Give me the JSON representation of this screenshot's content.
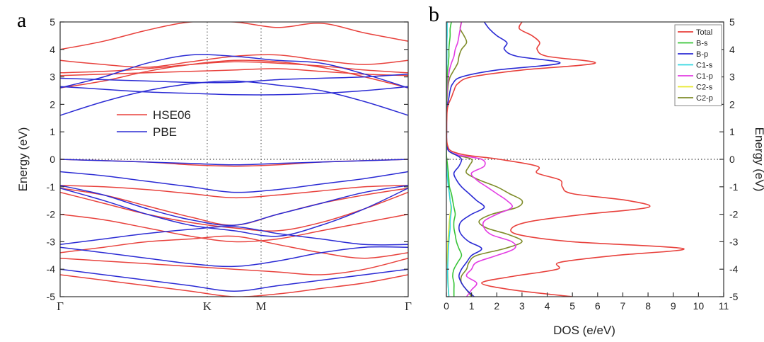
{
  "chart_data": [
    {
      "panel_label": "a",
      "type": "line",
      "title": "",
      "xlabel": "",
      "ylabel": "Energy (eV)",
      "ylim": [
        -5,
        5
      ],
      "yticks": [
        -5,
        -4,
        -3,
        -2,
        -1,
        0,
        1,
        2,
        3,
        4,
        5
      ],
      "x_points": [
        "Γ",
        "K",
        "M",
        "Γ"
      ],
      "x_positions": [
        0,
        1,
        1.366,
        2.366
      ],
      "grid": false,
      "fermi_level": 0,
      "legend_position": "center-left",
      "series": [
        {
          "name": "HSE06",
          "color": "#e8413c",
          "bands": [
            [
              4.0,
              4.3,
              4.7,
              5.0,
              5.0,
              4.8,
              4.95,
              4.6,
              4.3
            ],
            [
              3.6,
              3.45,
              3.35,
              3.55,
              3.75,
              3.8,
              3.6,
              3.45,
              3.6
            ],
            [
              3.15,
              3.2,
              3.3,
              3.45,
              3.55,
              3.5,
              3.4,
              3.25,
              3.15
            ],
            [
              3.05,
              3.1,
              3.15,
              3.2,
              3.25,
              3.3,
              3.2,
              3.1,
              3.05
            ],
            [
              2.6,
              2.85,
              3.2,
              3.45,
              3.6,
              3.55,
              3.35,
              3.0,
              2.6
            ],
            [
              0.0,
              -0.05,
              -0.1,
              -0.2,
              -0.25,
              -0.2,
              -0.1,
              -0.05,
              0.0
            ],
            [
              -0.95,
              -1.0,
              -1.1,
              -1.25,
              -1.4,
              -1.3,
              -1.15,
              -1.0,
              -0.95
            ],
            [
              -1.05,
              -1.3,
              -1.7,
              -2.1,
              -2.4,
              -2.0,
              -1.6,
              -1.3,
              -1.05
            ],
            [
              -1.2,
              -1.6,
              -2.0,
              -2.3,
              -2.5,
              -2.6,
              -2.3,
              -1.8,
              -1.2
            ],
            [
              -2.0,
              -2.2,
              -2.5,
              -2.8,
              -3.0,
              -2.9,
              -2.6,
              -2.3,
              -2.0
            ],
            [
              -3.4,
              -3.2,
              -3.0,
              -2.9,
              -2.8,
              -3.1,
              -3.4,
              -3.6,
              -3.4
            ],
            [
              -3.6,
              -3.7,
              -3.8,
              -3.9,
              -4.0,
              -4.1,
              -4.2,
              -4.0,
              -3.6
            ],
            [
              -4.2,
              -4.4,
              -4.6,
              -4.8,
              -5.0,
              -4.9,
              -4.7,
              -4.5,
              -4.2
            ]
          ]
        },
        {
          "name": "PBE",
          "color": "#2b2bd4",
          "bands": [
            [
              2.6,
              3.0,
              3.5,
              3.8,
              3.75,
              3.6,
              3.5,
              3.1,
              2.6
            ],
            [
              1.6,
              2.1,
              2.5,
              2.75,
              2.85,
              2.7,
              2.5,
              2.1,
              1.6
            ],
            [
              2.95,
              2.9,
              2.85,
              2.8,
              2.8,
              2.9,
              2.95,
              3.0,
              3.1
            ],
            [
              2.65,
              2.55,
              2.45,
              2.4,
              2.35,
              2.35,
              2.4,
              2.5,
              2.65
            ],
            [
              0.0,
              -0.05,
              -0.1,
              -0.15,
              -0.2,
              -0.15,
              -0.1,
              -0.05,
              0.0
            ],
            [
              -0.45,
              -0.6,
              -0.8,
              -1.0,
              -1.2,
              -1.1,
              -0.9,
              -0.7,
              -0.45
            ],
            [
              -0.95,
              -1.3,
              -1.8,
              -2.2,
              -2.4,
              -2.0,
              -1.6,
              -1.2,
              -0.95
            ],
            [
              -1.05,
              -1.5,
              -2.0,
              -2.4,
              -2.6,
              -2.8,
              -2.4,
              -1.8,
              -1.05
            ],
            [
              -3.1,
              -2.9,
              -2.7,
              -2.55,
              -2.45,
              -2.7,
              -2.9,
              -3.1,
              -3.1
            ],
            [
              -3.2,
              -3.4,
              -3.6,
              -3.8,
              -3.9,
              -3.7,
              -3.4,
              -3.2,
              -3.2
            ],
            [
              -4.0,
              -4.2,
              -4.4,
              -4.6,
              -4.8,
              -4.6,
              -4.4,
              -4.2,
              -4.0
            ]
          ]
        }
      ]
    },
    {
      "panel_label": "b",
      "type": "line",
      "title": "",
      "xlabel": "DOS (e/eV)",
      "ylabel": "Energy (eV)",
      "xlim": [
        0,
        11
      ],
      "xticks": [
        0,
        1,
        2,
        3,
        4,
        5,
        6,
        7,
        8,
        9,
        10,
        11
      ],
      "ylim": [
        -5,
        5
      ],
      "yticks": [
        -5,
        -4,
        -3,
        -2,
        -1,
        0,
        1,
        2,
        3,
        4,
        5
      ],
      "grid": false,
      "fermi_level": 0,
      "legend_position": "top-right",
      "energy": [
        5.0,
        4.75,
        4.5,
        4.25,
        4.0,
        3.75,
        3.5,
        3.25,
        3.0,
        2.75,
        2.5,
        2.25,
        2.0,
        1.75,
        1.5,
        1.25,
        1.0,
        0.75,
        0.5,
        0.3,
        0.15,
        0.0,
        -0.25,
        -0.5,
        -0.75,
        -1.0,
        -1.25,
        -1.5,
        -1.75,
        -2.0,
        -2.25,
        -2.5,
        -2.75,
        -3.0,
        -3.25,
        -3.5,
        -3.75,
        -4.0,
        -4.25,
        -4.5,
        -4.75,
        -5.0
      ],
      "series": [
        {
          "name": "Total",
          "color": "#e8413c",
          "values": [
            3.0,
            2.9,
            3.4,
            3.7,
            3.6,
            4.0,
            5.9,
            3.0,
            1.0,
            0.45,
            0.3,
            0.2,
            0.08,
            0.03,
            0.02,
            0.01,
            0.01,
            0.01,
            0.05,
            0.2,
            0.8,
            2.1,
            3.6,
            3.6,
            4.5,
            4.6,
            5.0,
            7.2,
            8.0,
            5.5,
            3.4,
            2.6,
            2.9,
            5.0,
            9.4,
            6.7,
            4.5,
            4.4,
            2.7,
            1.4,
            2.6,
            5.0
          ]
        },
        {
          "name": "B-s",
          "color": "#38c438",
          "values": [
            0.2,
            0.15,
            0.15,
            0.12,
            0.1,
            0.1,
            0.08,
            0.05,
            0.03,
            0.02,
            0.01,
            0.01,
            0.0,
            0.0,
            0.0,
            0.0,
            0.0,
            0.0,
            0.0,
            0.0,
            0.0,
            0.02,
            0.05,
            0.08,
            0.1,
            0.12,
            0.2,
            0.25,
            0.3,
            0.35,
            0.3,
            0.3,
            0.35,
            0.4,
            0.5,
            0.6,
            0.45,
            0.3,
            0.25,
            0.3,
            0.3,
            0.3
          ]
        },
        {
          "name": "B-p",
          "color": "#2b2bd4",
          "values": [
            1.5,
            1.7,
            2.0,
            2.4,
            2.3,
            2.8,
            4.5,
            2.0,
            0.6,
            0.25,
            0.15,
            0.1,
            0.05,
            0.02,
            0.01,
            0.01,
            0.01,
            0.01,
            0.02,
            0.1,
            0.4,
            0.6,
            0.5,
            0.3,
            0.4,
            0.6,
            0.9,
            1.2,
            1.5,
            1.0,
            0.6,
            0.5,
            0.6,
            0.9,
            1.4,
            1.0,
            0.8,
            0.6,
            0.5,
            0.6,
            0.8,
            1.1
          ]
        },
        {
          "name": "C1-s",
          "color": "#33d6e0",
          "values": [
            0.03,
            0.03,
            0.03,
            0.02,
            0.02,
            0.02,
            0.02,
            0.01,
            0.01,
            0.01,
            0.0,
            0.0,
            0.0,
            0.0,
            0.0,
            0.0,
            0.0,
            0.0,
            0.0,
            0.0,
            0.0,
            0.01,
            0.02,
            0.03,
            0.05,
            0.08,
            0.12,
            0.15,
            0.2,
            0.18,
            0.15,
            0.15,
            0.12,
            0.1,
            0.08,
            0.07,
            0.06,
            0.05,
            0.05,
            0.06,
            0.08,
            0.1
          ]
        },
        {
          "name": "C1-p",
          "color": "#e33ce3",
          "values": [
            0.6,
            0.55,
            0.5,
            0.45,
            0.35,
            0.3,
            0.2,
            0.12,
            0.08,
            0.05,
            0.03,
            0.02,
            0.01,
            0.01,
            0.0,
            0.0,
            0.0,
            0.0,
            0.02,
            0.1,
            0.5,
            1.4,
            1.5,
            1.0,
            1.2,
            1.6,
            2.0,
            2.4,
            2.6,
            2.0,
            1.5,
            1.5,
            1.8,
            2.6,
            2.7,
            2.0,
            1.2,
            1.0,
            0.8,
            1.2,
            1.0,
            0.8
          ]
        },
        {
          "name": "C2-s",
          "color": "#e8e82c",
          "values": [
            0.02,
            0.02,
            0.02,
            0.02,
            0.02,
            0.01,
            0.01,
            0.01,
            0.01,
            0.0,
            0.0,
            0.0,
            0.0,
            0.0,
            0.0,
            0.0,
            0.0,
            0.0,
            0.0,
            0.0,
            0.0,
            0.01,
            0.02,
            0.05,
            0.08,
            0.1,
            0.12,
            0.15,
            0.18,
            0.15,
            0.12,
            0.1,
            0.08,
            0.06,
            0.05,
            0.04,
            0.04,
            0.05,
            0.06,
            0.07,
            0.08,
            0.1
          ]
        },
        {
          "name": "C2-p",
          "color": "#7f8c2a",
          "values": [
            0.6,
            0.55,
            0.7,
            0.8,
            0.6,
            0.5,
            0.45,
            0.3,
            0.15,
            0.08,
            0.05,
            0.03,
            0.02,
            0.01,
            0.0,
            0.0,
            0.0,
            0.0,
            0.02,
            0.1,
            0.4,
            1.0,
            0.9,
            0.8,
            1.3,
            2.0,
            2.5,
            3.0,
            2.8,
            1.8,
            1.3,
            1.6,
            2.5,
            3.0,
            2.3,
            1.2,
            0.9,
            0.8,
            0.6,
            0.6,
            0.8,
            1.0
          ]
        }
      ]
    }
  ]
}
